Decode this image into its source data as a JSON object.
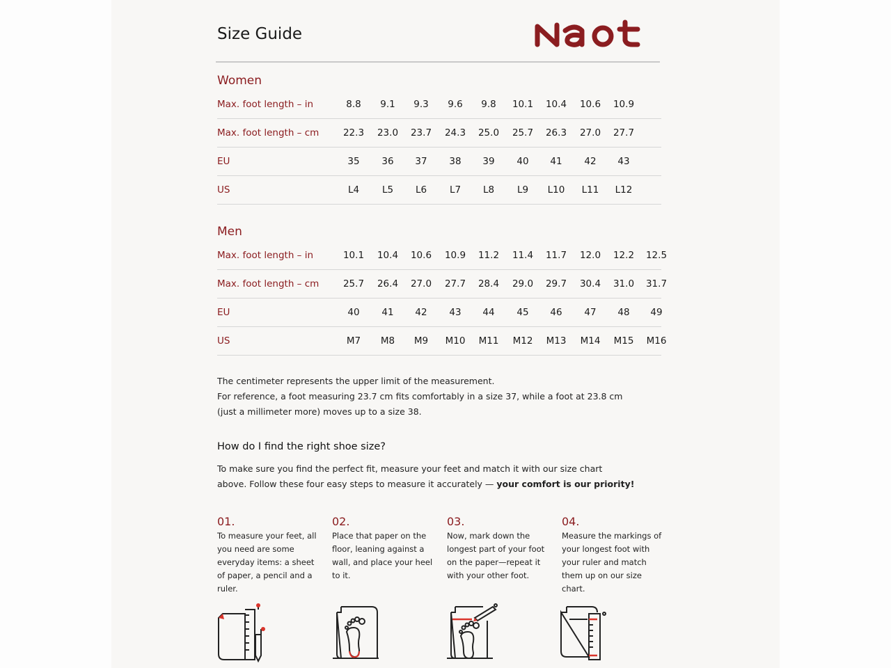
{
  "header": {
    "title": "Size Guide",
    "logo": "Naot"
  },
  "accent": "#8b1d20",
  "women": {
    "title": "Women",
    "rows": [
      {
        "label": "Max. foot length – in",
        "values": [
          "8.8",
          "9.1",
          "9.3",
          "9.6",
          "9.8",
          "10.1",
          "10.4",
          "10.6",
          "10.9"
        ]
      },
      {
        "label": "Max. foot length – cm",
        "values": [
          "22.3",
          "23.0",
          "23.7",
          "24.3",
          "25.0",
          "25.7",
          "26.3",
          "27.0",
          "27.7"
        ]
      },
      {
        "label": "EU",
        "values": [
          "35",
          "36",
          "37",
          "38",
          "39",
          "40",
          "41",
          "42",
          "43"
        ]
      },
      {
        "label": "US",
        "values": [
          "L4",
          "L5",
          "L6",
          "L7",
          "L8",
          "L9",
          "L10",
          "L11",
          "L12"
        ]
      }
    ]
  },
  "men": {
    "title": "Men",
    "rows": [
      {
        "label": "Max. foot length – in",
        "values": [
          "10.1",
          "10.4",
          "10.6",
          "10.9",
          "11.2",
          "11.4",
          "11.7",
          "12.0",
          "12.2",
          "12.5"
        ]
      },
      {
        "label": "Max. foot length – cm",
        "values": [
          "25.7",
          "26.4",
          "27.0",
          "27.7",
          "28.4",
          "29.0",
          "29.7",
          "30.4",
          "31.0",
          "31.7"
        ]
      },
      {
        "label": "EU",
        "values": [
          "40",
          "41",
          "42",
          "43",
          "44",
          "45",
          "46",
          "47",
          "48",
          "49"
        ]
      },
      {
        "label": "US",
        "values": [
          "M7",
          "M8",
          "M9",
          "M10",
          "M11",
          "M12",
          "M13",
          "M14",
          "M15",
          "M16"
        ]
      }
    ]
  },
  "note": {
    "line1": "The centimeter represents the upper limit of the measurement.",
    "line2": "For reference, a foot measuring 23.7 cm fits comfortably in a size 37, while a foot at 23.8 cm",
    "line3": "(just a millimeter more) moves up to a size 38."
  },
  "howto": {
    "title": "How do I find the right shoe size?",
    "line1": "To make sure you find the perfect fit, measure your feet and match it with our size chart",
    "line2_plain": "above. Follow these four easy steps to measure it accurately — ",
    "line2_bold": "your comfort is our priority!"
  },
  "steps": [
    {
      "num": "01.",
      "text": "To measure your feet, all you need are some everyday items: a sheet of paper, a pencil and a ruler.",
      "icon": "paper-pencil-ruler-icon"
    },
    {
      "num": "02.",
      "text": "Place that paper on the floor, leaning against a wall, and place your heel to it.",
      "icon": "foot-on-paper-icon"
    },
    {
      "num": "03.",
      "text": "Now, mark down the longest part of your foot on the paper—repeat it with your other foot.",
      "icon": "mark-foot-length-icon"
    },
    {
      "num": "04.",
      "text": "Measure the markings of your longest foot with your ruler and match them up on our size chart.",
      "icon": "measure-ruler-icon"
    }
  ]
}
